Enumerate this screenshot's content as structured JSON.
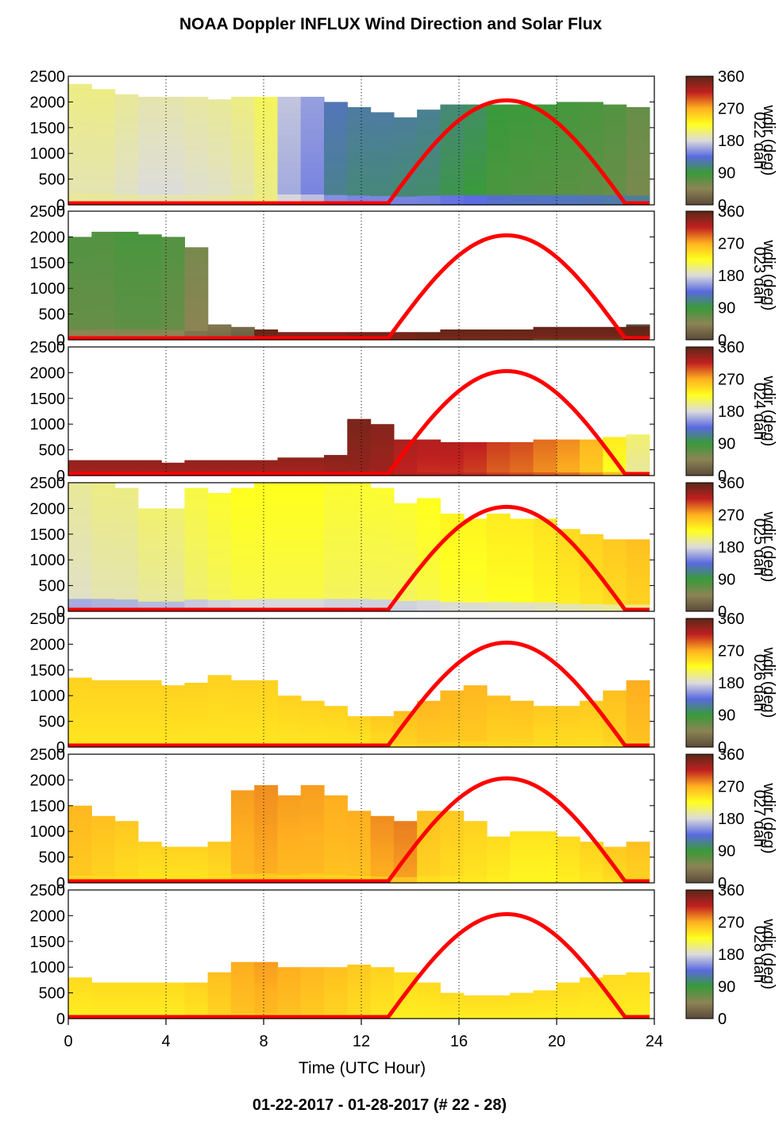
{
  "title": "NOAA Doppler INFLUX Wind Direction and Solar Flux",
  "footer": "01-22-2017 - 01-28-2017   (# 22 - 28)",
  "colors": {
    "solar_curve": "#ff0000",
    "colormap_stops": [
      "#5a4a3a",
      "#8c8454",
      "#3a9a3a",
      "#5a6ae0",
      "#dcdcdc",
      "#ffff20",
      "#ffb020",
      "#c02020",
      "#5a2818"
    ]
  },
  "chart_data": {
    "type": "heatmap",
    "xlabel": "Time (UTC Hour)",
    "xlim": [
      0,
      24
    ],
    "xticks": [
      "0",
      "4",
      "8",
      "12",
      "16",
      "20",
      "24"
    ],
    "ylim": [
      0,
      2500
    ],
    "yticks": [
      "0",
      "500",
      "1000",
      "1500",
      "2000",
      "2500"
    ],
    "colorbar": {
      "title": "wdir (deg)",
      "range": [
        0,
        360
      ],
      "ticks": [
        "0",
        "90",
        "180",
        "270",
        "360"
      ]
    },
    "solar_flux": {
      "sunrise_hour": 13.1,
      "noon_hour": 17.9,
      "sunset_hour": 22.8,
      "peak": 2000
    },
    "panels": [
      {
        "day": "022",
        "colorbar_label": "022 dah",
        "top_m": [
          2350,
          2250,
          2150,
          2100,
          2100,
          2100,
          2050,
          2100,
          2100,
          2100,
          2100,
          2000,
          1900,
          1800,
          1700,
          1850,
          1950,
          1950,
          1950,
          1950,
          1950,
          2000,
          2000,
          1950,
          1900
        ],
        "wdir_deg": [
          195,
          195,
          190,
          185,
          185,
          188,
          190,
          195,
          205,
          165,
          150,
          118,
          112,
          112,
          110,
          108,
          100,
          95,
          85,
          82,
          80,
          78,
          75,
          70,
          60
        ],
        "near_surface_wdir_deg": 210
      },
      {
        "day": "023",
        "colorbar_label": "023 dah",
        "top_m": [
          2000,
          2100,
          2100,
          2050,
          2000,
          1800,
          300,
          250,
          200,
          150,
          150,
          150,
          150,
          150,
          150,
          150,
          200,
          200,
          200,
          200,
          250,
          250,
          250,
          250,
          300
        ],
        "wdir_deg": [
          70,
          70,
          75,
          75,
          70,
          50,
          30,
          20,
          350,
          340,
          340,
          340,
          345,
          345,
          345,
          350,
          350,
          350,
          350,
          350,
          350,
          350,
          350,
          350,
          355
        ],
        "near_surface_wdir_deg": 20
      },
      {
        "day": "024",
        "colorbar_label": "024 dah",
        "top_m": [
          300,
          300,
          300,
          300,
          250,
          300,
          300,
          300,
          300,
          350,
          350,
          400,
          1100,
          1000,
          700,
          700,
          650,
          650,
          650,
          650,
          700,
          700,
          700,
          750,
          800
        ],
        "wdir_deg": [
          330,
          330,
          330,
          330,
          330,
          330,
          330,
          330,
          330,
          330,
          330,
          335,
          340,
          335,
          320,
          315,
          315,
          310,
          300,
          295,
          285,
          275,
          260,
          230,
          200
        ],
        "near_surface_wdir_deg": 330
      },
      {
        "day": "025",
        "colorbar_label": "025 dah",
        "top_m": [
          2500,
          2500,
          2400,
          2000,
          2000,
          2400,
          2300,
          2400,
          2500,
          2500,
          2500,
          2500,
          2500,
          2400,
          2100,
          2200,
          1900,
          1800,
          1900,
          1800,
          1800,
          1600,
          1500,
          1400,
          1400
        ],
        "wdir_deg": [
          190,
          195,
          195,
          200,
          200,
          210,
          215,
          220,
          220,
          220,
          220,
          215,
          215,
          215,
          215,
          220,
          225,
          225,
          230,
          230,
          235,
          240,
          245,
          250,
          255
        ],
        "near_surface_wdir_deg": 130
      },
      {
        "day": "026",
        "colorbar_label": "026 dah",
        "top_m": [
          1350,
          1300,
          1300,
          1300,
          1200,
          1250,
          1400,
          1300,
          1300,
          1000,
          900,
          800,
          600,
          600,
          700,
          900,
          1100,
          1200,
          1000,
          900,
          800,
          800,
          900,
          1100,
          1300
        ],
        "wdir_deg": [
          245,
          245,
          245,
          245,
          245,
          245,
          245,
          245,
          245,
          245,
          245,
          245,
          245,
          250,
          255,
          260,
          260,
          260,
          255,
          255,
          250,
          250,
          250,
          255,
          265
        ],
        "near_surface_wdir_deg": 245
      },
      {
        "day": "027",
        "colorbar_label": "027 dah",
        "top_m": [
          1500,
          1300,
          1200,
          800,
          700,
          700,
          800,
          1800,
          1900,
          1700,
          1900,
          1700,
          1400,
          1300,
          1200,
          1400,
          1400,
          1200,
          900,
          1000,
          1000,
          900,
          800,
          700,
          800
        ],
        "wdir_deg": [
          260,
          255,
          250,
          245,
          245,
          245,
          250,
          270,
          275,
          270,
          270,
          265,
          265,
          275,
          280,
          255,
          250,
          245,
          240,
          235,
          235,
          240,
          245,
          250,
          255
        ],
        "near_surface_wdir_deg": 240
      },
      {
        "day": "028",
        "colorbar_label": "028 dah",
        "top_m": [
          800,
          700,
          700,
          700,
          700,
          700,
          900,
          1100,
          1100,
          1000,
          1000,
          1000,
          1050,
          1000,
          900,
          700,
          500,
          450,
          450,
          500,
          550,
          700,
          800,
          850,
          900
        ],
        "wdir_deg": [
          240,
          240,
          240,
          240,
          240,
          245,
          255,
          265,
          270,
          265,
          260,
          255,
          250,
          245,
          240,
          240,
          240,
          240,
          240,
          240,
          240,
          240,
          240,
          240,
          240
        ],
        "near_surface_wdir_deg": 240
      }
    ]
  }
}
